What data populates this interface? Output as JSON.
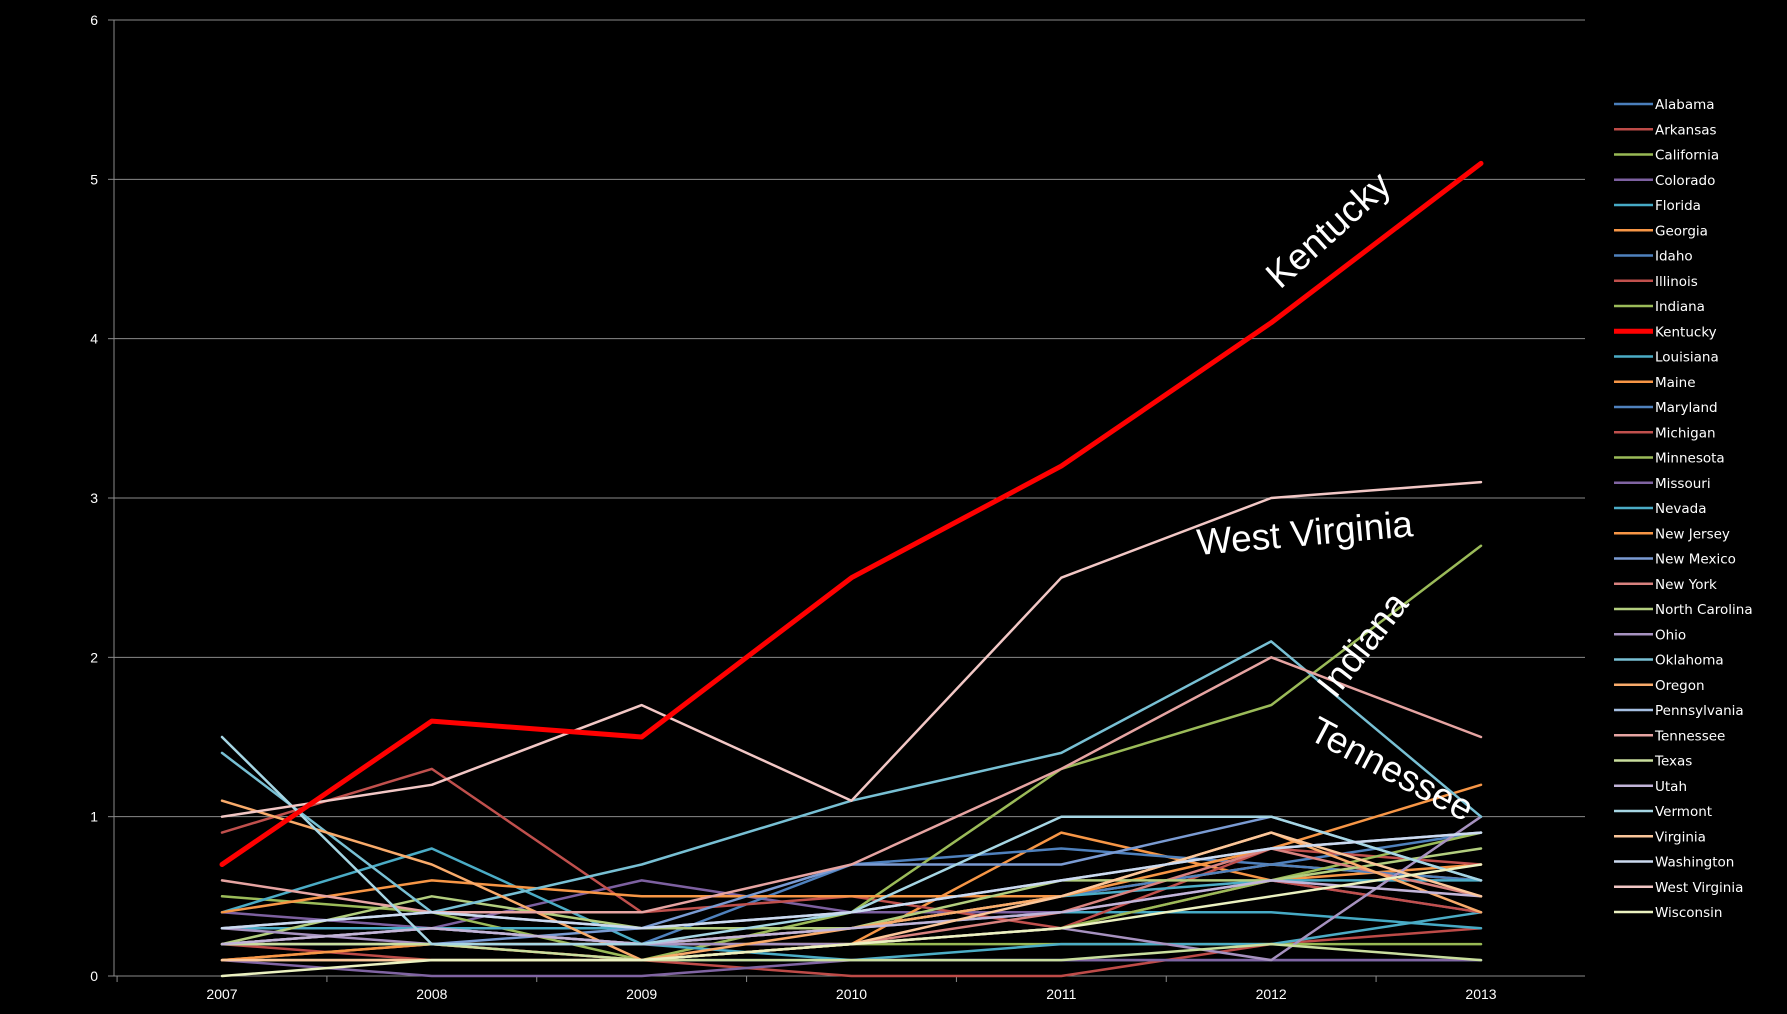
{
  "chart_data": {
    "type": "line",
    "x": [
      "2007",
      "2008",
      "2009",
      "2010",
      "2011",
      "2012",
      "2013"
    ],
    "ylim": [
      0,
      6
    ],
    "yticks": [
      0,
      1,
      2,
      3,
      4,
      5,
      6
    ],
    "grid": true,
    "legend_position": "right",
    "series": [
      {
        "name": "Alabama",
        "color": "#4A7EBB",
        "values": [
          0.1,
          0.1,
          0.1,
          0.1,
          0.1,
          0.1,
          0.1
        ]
      },
      {
        "name": "Arkansas",
        "color": "#BE4B48",
        "values": [
          0.2,
          0.1,
          0.1,
          0.0,
          0.0,
          0.2,
          0.3
        ]
      },
      {
        "name": "California",
        "color": "#98B954",
        "values": [
          0.2,
          0.2,
          0.2,
          0.2,
          0.2,
          0.2,
          0.2
        ]
      },
      {
        "name": "Colorado",
        "color": "#7D60A0",
        "values": [
          0.4,
          0.3,
          0.6,
          0.4,
          0.4,
          0.6,
          0.4
        ]
      },
      {
        "name": "Florida",
        "color": "#46AAC5",
        "values": [
          0.2,
          0.3,
          0.2,
          0.3,
          0.4,
          0.4,
          0.3
        ]
      },
      {
        "name": "Georgia",
        "color": "#F79646",
        "values": [
          0.1,
          0.2,
          0.1,
          0.2,
          0.9,
          0.6,
          0.7
        ]
      },
      {
        "name": "Idaho",
        "color": "#4F81BD",
        "values": [
          0.3,
          0.3,
          0.2,
          0.7,
          0.8,
          0.7,
          0.9
        ]
      },
      {
        "name": "Illinois",
        "color": "#C0504D",
        "values": [
          0.9,
          1.3,
          0.4,
          0.5,
          0.3,
          0.8,
          0.7
        ]
      },
      {
        "name": "Indiana",
        "color": "#9BBB59",
        "values": [
          0.5,
          0.4,
          0.1,
          0.4,
          1.3,
          1.7,
          2.7
        ]
      },
      {
        "name": "Kentucky",
        "color": "#FF0000",
        "values": [
          0.7,
          1.6,
          1.5,
          2.5,
          3.2,
          4.1,
          5.1
        ]
      },
      {
        "name": "Louisiana",
        "color": "#4BACC6",
        "values": [
          0.4,
          0.8,
          0.2,
          0.1,
          0.2,
          0.2,
          0.4
        ]
      },
      {
        "name": "Maine",
        "color": "#F79646",
        "values": [
          0.4,
          0.6,
          0.5,
          0.5,
          0.5,
          0.7,
          0.6
        ]
      },
      {
        "name": "Maryland",
        "color": "#4F81BD",
        "values": [
          0.2,
          0.3,
          0.2,
          0.3,
          0.5,
          0.7,
          0.6
        ]
      },
      {
        "name": "Michigan",
        "color": "#C0504D",
        "values": [
          0.2,
          0.2,
          0.1,
          0.2,
          0.3,
          0.6,
          0.4
        ]
      },
      {
        "name": "Minnesota",
        "color": "#9BBB59",
        "values": [
          0.1,
          0.1,
          0.1,
          0.2,
          0.3,
          0.6,
          0.9
        ]
      },
      {
        "name": "Missouri",
        "color": "#8064A2",
        "values": [
          0.1,
          0.0,
          0.0,
          0.1,
          0.1,
          0.1,
          0.1
        ]
      },
      {
        "name": "Nevada",
        "color": "#4BACC6",
        "values": [
          0.3,
          0.3,
          0.3,
          0.3,
          0.5,
          0.6,
          0.6
        ]
      },
      {
        "name": "New Jersey",
        "color": "#F79646",
        "values": [
          0.1,
          0.2,
          0.2,
          0.3,
          0.5,
          0.8,
          1.2
        ]
      },
      {
        "name": "New Mexico",
        "color": "#7A9BD3",
        "values": [
          0.2,
          0.2,
          0.3,
          0.7,
          0.7,
          1.0,
          0.6
        ]
      },
      {
        "name": "New York",
        "color": "#D9827F",
        "values": [
          0.2,
          0.3,
          0.2,
          0.2,
          0.4,
          0.8,
          0.5
        ]
      },
      {
        "name": "North Carolina",
        "color": "#B3CE7F",
        "values": [
          0.2,
          0.5,
          0.3,
          0.3,
          0.6,
          0.6,
          0.8
        ]
      },
      {
        "name": "Ohio",
        "color": "#A792C0",
        "values": [
          0.3,
          0.2,
          0.2,
          0.2,
          0.3,
          0.1,
          1.0
        ]
      },
      {
        "name": "Oklahoma",
        "color": "#78C0D4",
        "values": [
          1.4,
          0.4,
          0.7,
          1.1,
          1.4,
          2.1,
          1.0
        ]
      },
      {
        "name": "Oregon",
        "color": "#F9AB6B",
        "values": [
          1.1,
          0.7,
          0.1,
          0.3,
          0.5,
          0.9,
          0.4
        ]
      },
      {
        "name": "Pennsylvania",
        "color": "#A5BFE2",
        "values": [
          0.3,
          0.4,
          0.3,
          0.4,
          0.6,
          0.8,
          0.9
        ]
      },
      {
        "name": "Tennessee",
        "color": "#E6A4A2",
        "values": [
          0.6,
          0.4,
          0.4,
          0.7,
          1.3,
          2.0,
          1.5
        ]
      },
      {
        "name": "Texas",
        "color": "#C9DE9E",
        "values": [
          0.2,
          0.2,
          0.1,
          0.1,
          0.1,
          0.2,
          0.1
        ]
      },
      {
        "name": "Utah",
        "color": "#C2B4D8",
        "values": [
          0.2,
          0.3,
          0.2,
          0.3,
          0.4,
          0.6,
          0.5
        ]
      },
      {
        "name": "Vermont",
        "color": "#A6D6E4",
        "values": [
          1.5,
          0.2,
          0.2,
          0.4,
          1.0,
          1.0,
          0.6
        ]
      },
      {
        "name": "Virginia",
        "color": "#FBC69A",
        "values": [
          0.1,
          0.1,
          0.1,
          0.2,
          0.5,
          0.9,
          0.5
        ]
      },
      {
        "name": "Washington",
        "color": "#CCDAF0",
        "values": [
          0.3,
          0.4,
          0.3,
          0.4,
          0.6,
          0.8,
          0.9
        ]
      },
      {
        "name": "West Virginia",
        "color": "#F2C7C5",
        "values": [
          1.0,
          1.2,
          1.7,
          1.1,
          2.5,
          3.0,
          3.1
        ]
      },
      {
        "name": "Wisconsin",
        "color": "#EBF1C0",
        "values": [
          0.0,
          0.1,
          0.1,
          0.2,
          0.3,
          0.5,
          0.7
        ]
      }
    ],
    "annotations": [
      "Kentucky",
      "West Virginia",
      "Indiana",
      "Tennessee"
    ]
  }
}
